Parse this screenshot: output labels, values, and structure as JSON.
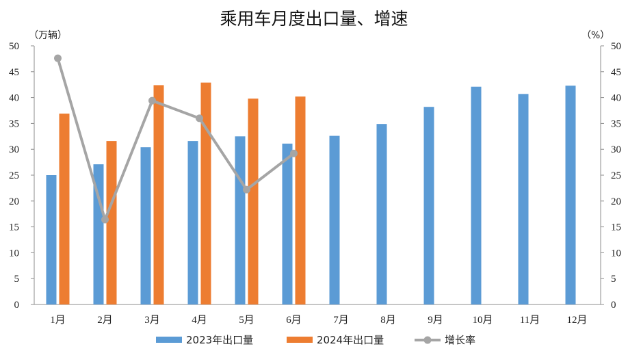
{
  "chart_data": {
    "type": "bar",
    "title": "乘用车月度出口量、增速",
    "left_axis_unit": "（万辆）",
    "right_axis_unit": "（%）",
    "categories": [
      "1月",
      "2月",
      "3月",
      "4月",
      "5月",
      "6月",
      "7月",
      "8月",
      "9月",
      "10月",
      "11月",
      "12月"
    ],
    "ylim": [
      0,
      50
    ],
    "y2lim": [
      0,
      50
    ],
    "yticks": [
      0,
      5,
      10,
      15,
      20,
      25,
      30,
      35,
      40,
      45,
      50
    ],
    "series": [
      {
        "name": "2023年出口量",
        "kind": "bar",
        "axis": "left",
        "color": "#5B9BD5",
        "values": [
          25.0,
          27.1,
          30.4,
          31.6,
          32.5,
          31.1,
          32.6,
          34.9,
          38.2,
          42.1,
          40.7,
          42.3
        ]
      },
      {
        "name": "2024年出口量",
        "kind": "bar",
        "axis": "left",
        "color": "#ED7D31",
        "values": [
          36.9,
          31.6,
          42.4,
          42.9,
          39.8,
          40.2,
          null,
          null,
          null,
          null,
          null,
          null
        ]
      },
      {
        "name": "增长率",
        "kind": "line",
        "axis": "right",
        "color": "#A5A5A5",
        "values": [
          47.6,
          16.4,
          39.4,
          36.0,
          22.2,
          29.2,
          null,
          null,
          null,
          null,
          null,
          null
        ]
      }
    ],
    "grid": false,
    "legend_position": "bottom"
  }
}
